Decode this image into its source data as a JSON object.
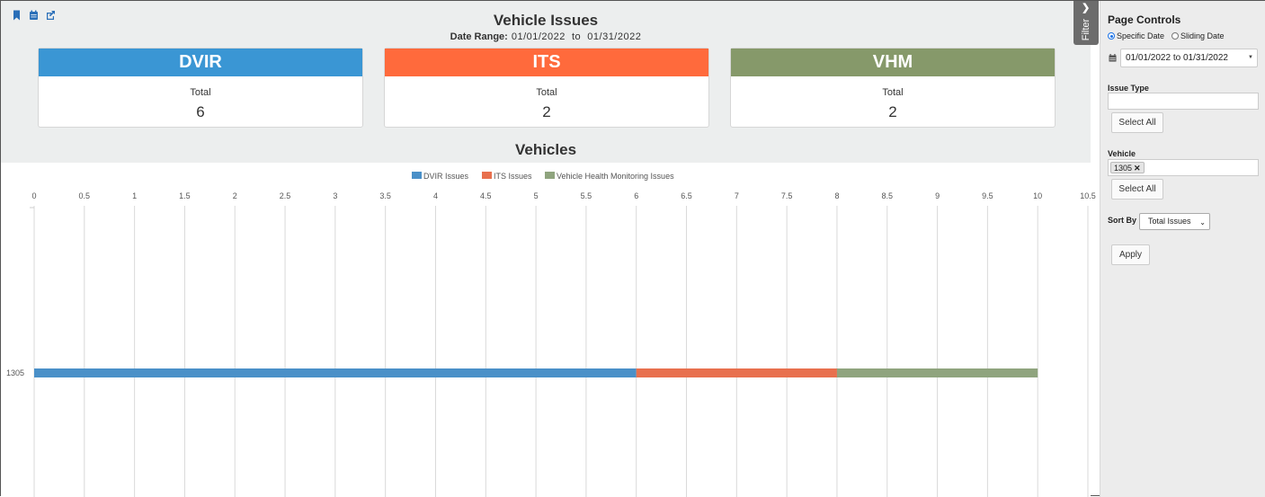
{
  "header": {
    "title": "Vehicle Issues",
    "date_range_label": "Date Range:",
    "date_range_value": "01/01/2022  to  01/31/2022"
  },
  "toolbar": {
    "icons": [
      "bookmark-icon",
      "calendar-icon",
      "external-link-icon"
    ]
  },
  "cards": [
    {
      "title": "DVIR",
      "sub": "Total",
      "value": "6",
      "color": "#3a96d4"
    },
    {
      "title": "ITS",
      "sub": "Total",
      "value": "2",
      "color": "#ff6a3c"
    },
    {
      "title": "VHM",
      "sub": "Total",
      "value": "2",
      "color": "#86996a"
    }
  ],
  "vehicles_title": "Vehicles",
  "chart_data": {
    "type": "bar",
    "orientation": "horizontal",
    "stacked": true,
    "categories": [
      "1305"
    ],
    "series": [
      {
        "name": "DVIR Issues",
        "values": [
          6
        ],
        "color": "#4a90c8"
      },
      {
        "name": "ITS Issues",
        "values": [
          2
        ],
        "color": "#e8704e"
      },
      {
        "name": "Vehicle Health Monitoring Issues",
        "values": [
          2
        ],
        "color": "#8fa47e"
      }
    ],
    "xlim": [
      0,
      10.5
    ],
    "x_ticks": [
      "0",
      "0.5",
      "1",
      "1.5",
      "2",
      "2.5",
      "3",
      "3.5",
      "4",
      "4.5",
      "5",
      "5.5",
      "6",
      "6.5",
      "7",
      "7.5",
      "8",
      "8.5",
      "9",
      "9.5",
      "10",
      "10.5"
    ],
    "x_tick_values": [
      0,
      0.5,
      1,
      1.5,
      2,
      2.5,
      3,
      3.5,
      4,
      4.5,
      5,
      5.5,
      6,
      6.5,
      7,
      7.5,
      8,
      8.5,
      9,
      9.5,
      10,
      10.5
    ],
    "x_axis_position": "top",
    "grid": true,
    "legend_position": "top-center"
  },
  "filter_tab": {
    "label": "Filter"
  },
  "panel": {
    "title": "Page Controls",
    "date_modes": [
      {
        "label": "Specific Date",
        "selected": true
      },
      {
        "label": "Sliding Date",
        "selected": false
      }
    ],
    "date_value": "01/01/2022 to 01/31/2022",
    "issue_type_label": "Issue Type",
    "issue_type_value": "",
    "select_all": "Select All",
    "vehicle_label": "Vehicle",
    "vehicle_chip": "1305",
    "vehicle_chip_remove": "✕",
    "sort_by_label": "Sort By",
    "sort_by_value": "Total Issues",
    "apply": "Apply"
  }
}
